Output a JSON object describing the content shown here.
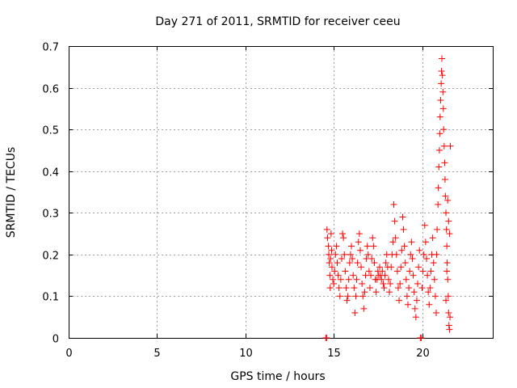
{
  "chart_data": {
    "type": "scatter",
    "title": "Day 271 of 2011, SRMTID for receiver ceeu",
    "xlabel": "GPS time / hours",
    "ylabel": "SRMTID / TECUs",
    "xlim": [
      0,
      24
    ],
    "ylim": [
      0,
      0.7
    ],
    "xticks": [
      "0",
      "5",
      "10",
      "15",
      "20"
    ],
    "yticks": [
      "0",
      "0.1",
      "0.2",
      "0.3",
      "0.4",
      "0.5",
      "0.6",
      "0.7"
    ],
    "xtick_values": [
      0,
      5,
      10,
      15,
      20
    ],
    "ytick_values": [
      0,
      0.1,
      0.2,
      0.3,
      0.4,
      0.5,
      0.6,
      0.7
    ],
    "grid": true,
    "marker": "+",
    "series": [
      {
        "color": "#ff0000",
        "points": [
          [
            14.55,
            0.0
          ],
          [
            14.6,
            0.0
          ],
          [
            14.62,
            0.26
          ],
          [
            14.65,
            0.24
          ],
          [
            14.7,
            0.22
          ],
          [
            14.72,
            0.2
          ],
          [
            14.75,
            0.18
          ],
          [
            14.78,
            0.15
          ],
          [
            14.8,
            0.12
          ],
          [
            14.82,
            0.19
          ],
          [
            14.85,
            0.25
          ],
          [
            14.88,
            0.21
          ],
          [
            14.9,
            0.17
          ],
          [
            14.95,
            0.14
          ],
          [
            15.0,
            0.13
          ],
          [
            15.05,
            0.16
          ],
          [
            15.1,
            0.2
          ],
          [
            15.15,
            0.22
          ],
          [
            15.2,
            0.18
          ],
          [
            15.25,
            0.15
          ],
          [
            15.3,
            0.12
          ],
          [
            15.35,
            0.1
          ],
          [
            15.4,
            0.14
          ],
          [
            15.45,
            0.19
          ],
          [
            15.5,
            0.25
          ],
          [
            15.55,
            0.24
          ],
          [
            15.6,
            0.2
          ],
          [
            15.65,
            0.16
          ],
          [
            15.7,
            0.12
          ],
          [
            15.75,
            0.09
          ],
          [
            15.8,
            0.1
          ],
          [
            15.85,
            0.14
          ],
          [
            15.9,
            0.18
          ],
          [
            15.95,
            0.2
          ],
          [
            16.0,
            0.22
          ],
          [
            16.05,
            0.19
          ],
          [
            16.1,
            0.15
          ],
          [
            16.15,
            0.12
          ],
          [
            16.2,
            0.06
          ],
          [
            16.25,
            0.1
          ],
          [
            16.3,
            0.14
          ],
          [
            16.35,
            0.18
          ],
          [
            16.4,
            0.23
          ],
          [
            16.45,
            0.25
          ],
          [
            16.5,
            0.21
          ],
          [
            16.55,
            0.17
          ],
          [
            16.6,
            0.13
          ],
          [
            16.65,
            0.1
          ],
          [
            16.7,
            0.07
          ],
          [
            16.75,
            0.11
          ],
          [
            16.8,
            0.15
          ],
          [
            16.85,
            0.19
          ],
          [
            16.9,
            0.22
          ],
          [
            16.95,
            0.2
          ],
          [
            17.0,
            0.16
          ],
          [
            17.05,
            0.12
          ],
          [
            17.1,
            0.15
          ],
          [
            17.15,
            0.19
          ],
          [
            17.2,
            0.24
          ],
          [
            17.25,
            0.22
          ],
          [
            17.3,
            0.18
          ],
          [
            17.35,
            0.14
          ],
          [
            17.4,
            0.11
          ],
          [
            17.45,
            0.14
          ],
          [
            17.5,
            0.16
          ],
          [
            17.55,
            0.15
          ],
          [
            17.6,
            0.17
          ],
          [
            17.65,
            0.15
          ],
          [
            17.7,
            0.14
          ],
          [
            17.75,
            0.16
          ],
          [
            17.8,
            0.13
          ],
          [
            17.85,
            0.12
          ],
          [
            17.9,
            0.15
          ],
          [
            17.95,
            0.18
          ],
          [
            18.0,
            0.2
          ],
          [
            18.05,
            0.17
          ],
          [
            18.1,
            0.14
          ],
          [
            18.15,
            0.11
          ],
          [
            18.2,
            0.13
          ],
          [
            18.25,
            0.17
          ],
          [
            18.3,
            0.2
          ],
          [
            18.35,
            0.23
          ],
          [
            18.4,
            0.32
          ],
          [
            18.45,
            0.28
          ],
          [
            18.5,
            0.24
          ],
          [
            18.55,
            0.2
          ],
          [
            18.6,
            0.16
          ],
          [
            18.65,
            0.12
          ],
          [
            18.7,
            0.09
          ],
          [
            18.75,
            0.13
          ],
          [
            18.8,
            0.17
          ],
          [
            18.85,
            0.21
          ],
          [
            18.9,
            0.29
          ],
          [
            18.95,
            0.26
          ],
          [
            19.0,
            0.22
          ],
          [
            19.05,
            0.18
          ],
          [
            19.1,
            0.14
          ],
          [
            19.15,
            0.1
          ],
          [
            19.2,
            0.08
          ],
          [
            19.25,
            0.12
          ],
          [
            19.3,
            0.16
          ],
          [
            19.35,
            0.2
          ],
          [
            19.4,
            0.23
          ],
          [
            19.45,
            0.19
          ],
          [
            19.5,
            0.15
          ],
          [
            19.55,
            0.11
          ],
          [
            19.6,
            0.07
          ],
          [
            19.65,
            0.05
          ],
          [
            19.7,
            0.09
          ],
          [
            19.75,
            0.13
          ],
          [
            19.8,
            0.17
          ],
          [
            19.85,
            0.21
          ],
          [
            19.9,
            0.0
          ],
          [
            19.95,
            0.0
          ],
          [
            20.0,
            0.12
          ],
          [
            20.05,
            0.16
          ],
          [
            20.1,
            0.2
          ],
          [
            20.15,
            0.27
          ],
          [
            20.2,
            0.23
          ],
          [
            20.25,
            0.19
          ],
          [
            20.3,
            0.15
          ],
          [
            20.35,
            0.11
          ],
          [
            20.4,
            0.08
          ],
          [
            20.45,
            0.12
          ],
          [
            20.5,
            0.16
          ],
          [
            20.55,
            0.2
          ],
          [
            20.6,
            0.24
          ],
          [
            20.65,
            0.18
          ],
          [
            20.7,
            0.14
          ],
          [
            20.75,
            0.1
          ],
          [
            20.8,
            0.06
          ],
          [
            20.82,
            0.2
          ],
          [
            20.85,
            0.26
          ],
          [
            20.9,
            0.32
          ],
          [
            20.92,
            0.36
          ],
          [
            20.95,
            0.41
          ],
          [
            20.98,
            0.45
          ],
          [
            21.0,
            0.49
          ],
          [
            21.02,
            0.53
          ],
          [
            21.05,
            0.57
          ],
          [
            21.08,
            0.61
          ],
          [
            21.1,
            0.64
          ],
          [
            21.12,
            0.67
          ],
          [
            21.15,
            0.63
          ],
          [
            21.18,
            0.59
          ],
          [
            21.2,
            0.55
          ],
          [
            21.22,
            0.5
          ],
          [
            21.25,
            0.46
          ],
          [
            21.28,
            0.42
          ],
          [
            21.3,
            0.38
          ],
          [
            21.32,
            0.34
          ],
          [
            21.35,
            0.3
          ],
          [
            21.38,
            0.26
          ],
          [
            21.4,
            0.22
          ],
          [
            21.42,
            0.18
          ],
          [
            21.45,
            0.14
          ],
          [
            21.48,
            0.1
          ],
          [
            21.5,
            0.06
          ],
          [
            21.52,
            0.03
          ],
          [
            21.55,
            0.02
          ],
          [
            21.58,
            0.05
          ],
          [
            21.6,
            0.46
          ],
          [
            21.45,
            0.33
          ],
          [
            21.5,
            0.28
          ],
          [
            21.55,
            0.25
          ],
          [
            21.4,
            0.16
          ],
          [
            21.35,
            0.09
          ]
        ]
      }
    ]
  }
}
